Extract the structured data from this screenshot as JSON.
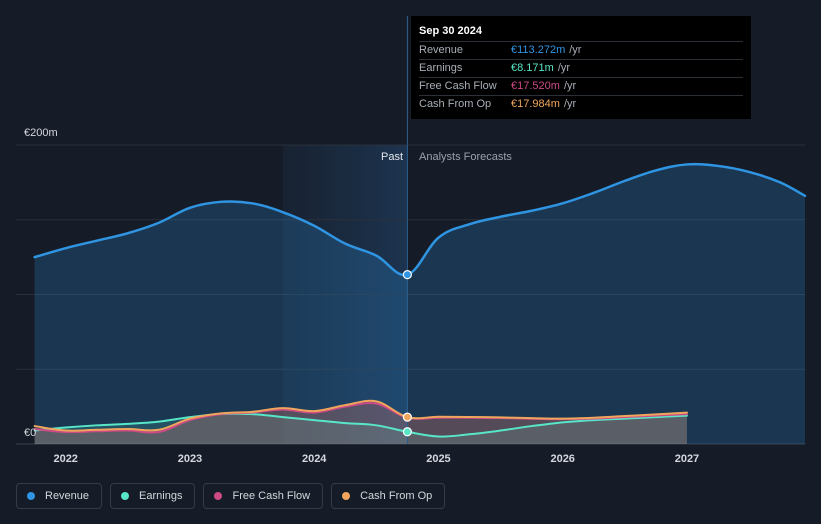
{
  "colors": {
    "revenue": "#2f95e3",
    "earnings": "#58e6c8",
    "fcf": "#cc4a85",
    "cfo": "#efa65c",
    "grid": "#2a303b",
    "axis_text": "#d4d7dd",
    "past_label": "#e6e8eb",
    "forecast_label": "#9aa1ab"
  },
  "chart_data": {
    "type": "line",
    "title": "",
    "y_axis_labels": {
      "top": "€200m",
      "bottom": "€0"
    },
    "ylim": [
      0,
      200
    ],
    "xlim": [
      2021.6,
      2027.95
    ],
    "x_ticks": [
      2022,
      2023,
      2024,
      2025,
      2026,
      2027
    ],
    "x_tick_labels": [
      "2022",
      "2023",
      "2024",
      "2025",
      "2026",
      "2027"
    ],
    "past_label": "Past",
    "forecast_label": "Analysts Forecasts",
    "divider_x": 2024.75,
    "highlight_band": [
      2023.75,
      2024.75
    ],
    "series": [
      {
        "name": "Revenue",
        "key": "revenue",
        "x": [
          2021.75,
          2022.0,
          2022.25,
          2022.5,
          2022.75,
          2023.0,
          2023.25,
          2023.5,
          2023.75,
          2024.0,
          2024.25,
          2024.5,
          2024.75,
          2025.0,
          2025.25,
          2025.5,
          2025.75,
          2026.0,
          2026.25,
          2026.5,
          2026.75,
          2027.0,
          2027.25,
          2027.5,
          2027.75,
          2027.95
        ],
        "y": [
          125,
          131,
          136,
          141,
          148,
          158,
          162,
          161,
          155,
          146,
          134,
          126,
          113.272,
          138,
          147,
          152,
          156,
          161,
          168,
          176,
          183,
          187,
          186,
          182,
          175,
          166
        ]
      },
      {
        "name": "Earnings",
        "key": "earnings",
        "x": [
          2021.75,
          2022.0,
          2022.25,
          2022.5,
          2022.75,
          2023.0,
          2023.25,
          2023.5,
          2023.75,
          2024.0,
          2024.25,
          2024.5,
          2024.75,
          2025.0,
          2025.25,
          2025.5,
          2025.75,
          2026.0,
          2026.25,
          2026.5,
          2026.75,
          2027.0
        ],
        "y": [
          9,
          11,
          12.5,
          13.5,
          15,
          18,
          20,
          20,
          18,
          16,
          14,
          12.5,
          8.171,
          5,
          6.5,
          9,
          12,
          14.5,
          16,
          17,
          18,
          19
        ]
      },
      {
        "name": "Free Cash Flow",
        "key": "fcf",
        "x": [
          2021.75,
          2022.0,
          2022.25,
          2022.5,
          2022.75,
          2023.0,
          2023.25,
          2023.5,
          2023.75,
          2024.0,
          2024.25,
          2024.5,
          2024.75,
          2025.0,
          2025.25,
          2025.5,
          2025.75,
          2026.0,
          2026.25,
          2026.5,
          2026.75,
          2027.0
        ],
        "y": [
          10,
          8,
          8.5,
          9,
          8,
          16,
          20,
          21,
          23,
          21,
          25,
          27,
          17.52,
          17.6,
          17.6,
          17.4,
          16.8,
          16.6,
          17,
          18,
          19,
          20
        ]
      },
      {
        "name": "Cash From Op",
        "key": "cfo",
        "x": [
          2021.75,
          2022.0,
          2022.25,
          2022.5,
          2022.75,
          2023.0,
          2023.25,
          2023.5,
          2023.75,
          2024.0,
          2024.25,
          2024.5,
          2024.75,
          2025.0,
          2025.25,
          2025.5,
          2025.75,
          2026.0,
          2026.25,
          2026.5,
          2026.75,
          2027.0
        ],
        "y": [
          12,
          9,
          9.5,
          10,
          9.5,
          17,
          20.5,
          21.5,
          24,
          22,
          26,
          28.5,
          17.984,
          18.2,
          18.1,
          17.8,
          17.3,
          17,
          17.6,
          18.7,
          19.8,
          21
        ]
      }
    ],
    "highlight_point_x": 2024.75
  },
  "tooltip": {
    "date": "Sep 30 2024",
    "rows": [
      {
        "label": "Revenue",
        "value": "€113.272m",
        "unit": "/yr"
      },
      {
        "label": "Earnings",
        "value": "€8.171m",
        "unit": "/yr"
      },
      {
        "label": "Free Cash Flow",
        "value": "€17.520m",
        "unit": "/yr"
      },
      {
        "label": "Cash From Op",
        "value": "€17.984m",
        "unit": "/yr"
      }
    ]
  },
  "legend": [
    {
      "label": "Revenue",
      "key": "revenue"
    },
    {
      "label": "Earnings",
      "key": "earnings"
    },
    {
      "label": "Free Cash Flow",
      "key": "fcf"
    },
    {
      "label": "Cash From Op",
      "key": "cfo"
    }
  ]
}
